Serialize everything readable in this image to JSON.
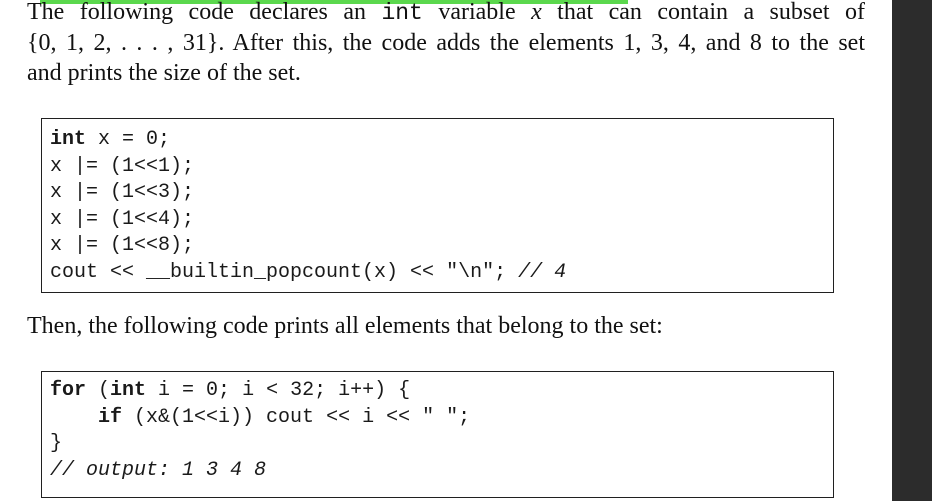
{
  "paragraph1": {
    "line1_a": "The following code declares an ",
    "line1_code": "int",
    "line1_b": " variable ",
    "line1_var": "x",
    "line1_c": " that can contain a subset of",
    "line2": "{0, 1, 2, . . . , 31}. After this, the code adds the elements 1, 3, 4, and 8 to the set",
    "line3": "and prints the size of the set."
  },
  "code1": {
    "l1_kw": "int",
    "l1_rest": " x = 0;",
    "l2": "x |= (1<<1);",
    "l3": "x |= (1<<3);",
    "l4": "x |= (1<<4);",
    "l5": "x |= (1<<8);",
    "l6_code": "cout << __builtin_popcount(x) << \"\\n\"; ",
    "l6_comment": "// 4"
  },
  "paragraph2": {
    "text": "Then, the following code prints all elements that belong to the set:"
  },
  "code2": {
    "l1_kw1": "for",
    "l1_a": " (",
    "l1_kw2": "int",
    "l1_b": " i = 0; i < 32; i++) {",
    "l2_indent": "    ",
    "l2_kw": "if",
    "l2_rest": " (x&(1<<i)) cout << i << \" \";",
    "l3": "}",
    "l4_comment": "// output: 1 3 4 8"
  },
  "colors": {
    "highlight": "#5bd84d",
    "scrollbar": "#2c2c2c",
    "text": "#111111"
  }
}
